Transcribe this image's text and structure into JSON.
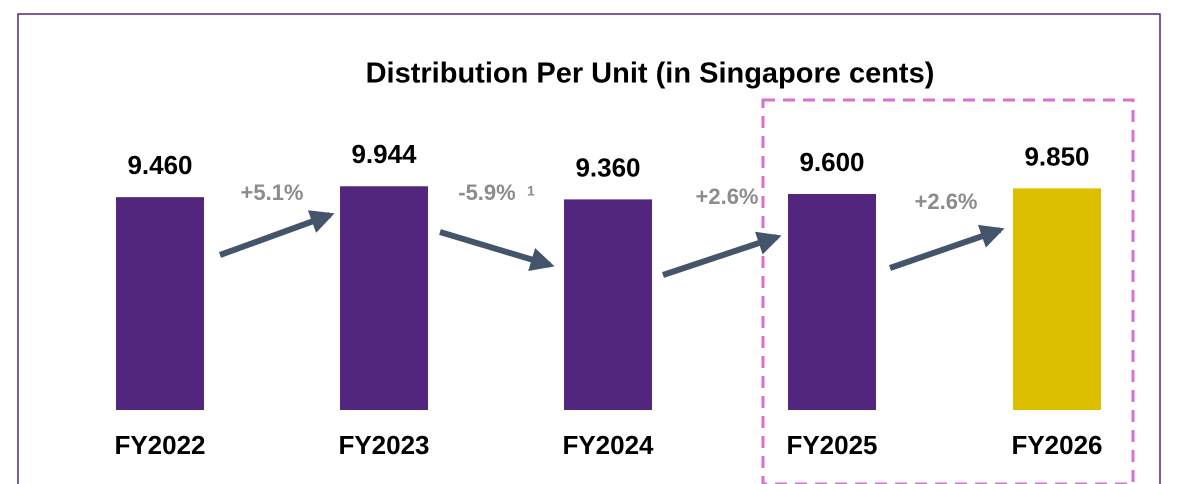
{
  "chart_data": {
    "type": "bar",
    "title": "Distribution Per Unit (in Singapore cents)",
    "categories": [
      "FY2022",
      "FY2023",
      "FY2024",
      "FY2025",
      "FY2026"
    ],
    "values": [
      9.46,
      9.944,
      9.36,
      9.6,
      9.85
    ],
    "value_labels": [
      "9.460",
      "9.944",
      "9.360",
      "9.600",
      "9.850"
    ],
    "colors": [
      "#52267d",
      "#52267d",
      "#52267d",
      "#52267d",
      "#dcc000"
    ],
    "ylim": [
      0,
      10
    ],
    "annotations": [
      "+5.1%",
      "-5.9%",
      "+2.6%",
      "+2.6%"
    ],
    "footnote_marker": "1"
  }
}
